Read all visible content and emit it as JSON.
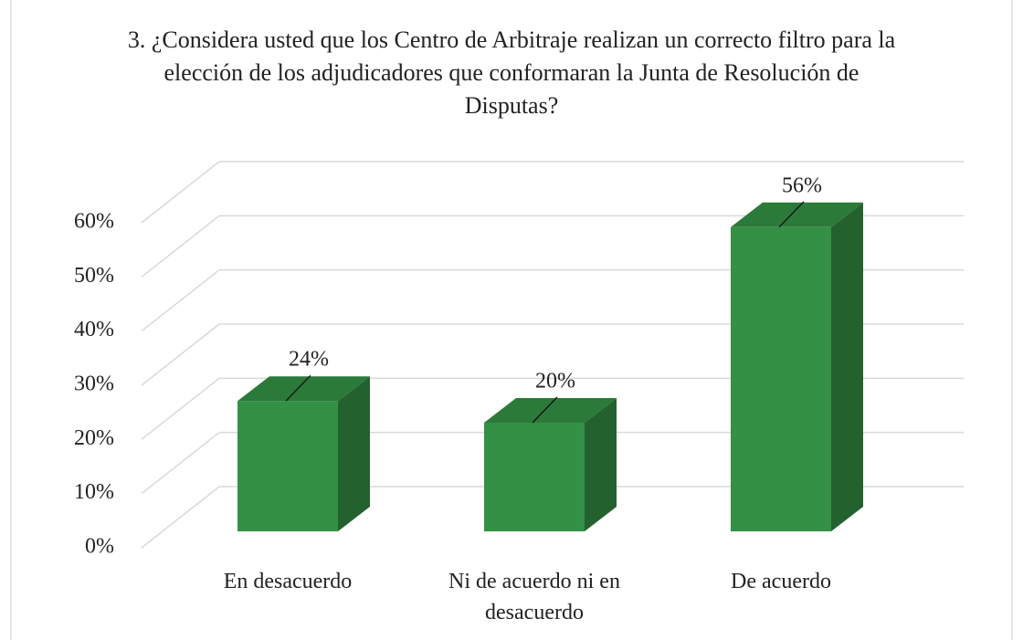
{
  "chart_data": {
    "type": "bar3d",
    "title": "3. ¿Considera usted que los Centro de Arbitraje realizan un correcto filtro para la elección de los adjudicadores que conformaran la Junta de Resolución de Disputas?",
    "categories": [
      "En desacuerdo",
      "Ni de acuerdo ni en desacuerdo",
      "De acuerdo"
    ],
    "values": [
      24,
      20,
      56
    ],
    "value_labels": [
      "24%",
      "20%",
      "56%"
    ],
    "color": "#339044",
    "ylim": [
      0,
      60
    ],
    "yticks": [
      {
        "value": 0,
        "label": "0%"
      },
      {
        "value": 10,
        "label": "10%"
      },
      {
        "value": 20,
        "label": "20%"
      },
      {
        "value": 30,
        "label": "30%"
      },
      {
        "value": 40,
        "label": "40%"
      },
      {
        "value": 50,
        "label": "50%"
      },
      {
        "value": 60,
        "label": "60%"
      }
    ],
    "grid": true
  }
}
